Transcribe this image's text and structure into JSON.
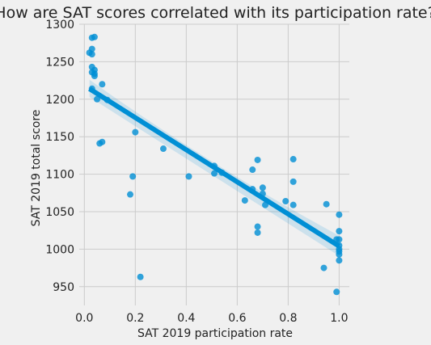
{
  "chart_data": {
    "type": "scatter",
    "title": "How are SAT scores correlated with its participation rate?",
    "xlabel": "SAT 2019 participation rate",
    "ylabel": "SAT 2019 total score",
    "xlim": [
      -0.02,
      1.04
    ],
    "ylim": [
      925,
      1300
    ],
    "xticks": [
      0.0,
      0.2,
      0.4,
      0.6,
      0.8,
      1.0
    ],
    "xtick_labels": [
      "0.0",
      "0.2",
      "0.4",
      "0.6",
      "0.8",
      "1.0"
    ],
    "yticks": [
      950,
      1000,
      1050,
      1100,
      1150,
      1200,
      1250,
      1300
    ],
    "ytick_labels": [
      "950",
      "1000",
      "1050",
      "1100",
      "1150",
      "1200",
      "1250",
      "1300"
    ],
    "grid": true,
    "point_color": "#008fd5",
    "regression": {
      "x": [
        0.02,
        1.0
      ],
      "y": [
        1214,
        1004
      ],
      "ci_lower_start": 1203,
      "ci_upper_start": 1226,
      "ci_lower_mid": 1097,
      "ci_upper_mid": 1108,
      "ci_lower_end": 991,
      "ci_upper_end": 1018
    },
    "points": [
      {
        "x": 0.02,
        "y": 1262
      },
      {
        "x": 0.03,
        "y": 1282
      },
      {
        "x": 0.04,
        "y": 1283
      },
      {
        "x": 0.03,
        "y": 1267
      },
      {
        "x": 0.03,
        "y": 1260
      },
      {
        "x": 0.03,
        "y": 1243
      },
      {
        "x": 0.04,
        "y": 1239
      },
      {
        "x": 0.03,
        "y": 1236
      },
      {
        "x": 0.04,
        "y": 1234
      },
      {
        "x": 0.04,
        "y": 1231
      },
      {
        "x": 0.07,
        "y": 1220
      },
      {
        "x": 0.03,
        "y": 1214
      },
      {
        "x": 0.05,
        "y": 1200
      },
      {
        "x": 0.09,
        "y": 1199
      },
      {
        "x": 0.2,
        "y": 1156
      },
      {
        "x": 0.07,
        "y": 1143
      },
      {
        "x": 0.06,
        "y": 1141
      },
      {
        "x": 0.31,
        "y": 1134
      },
      {
        "x": 0.51,
        "y": 1111
      },
      {
        "x": 0.51,
        "y": 1101
      },
      {
        "x": 0.54,
        "y": 1102
      },
      {
        "x": 0.41,
        "y": 1097
      },
      {
        "x": 0.19,
        "y": 1097
      },
      {
        "x": 0.18,
        "y": 1073
      },
      {
        "x": 0.68,
        "y": 1119
      },
      {
        "x": 0.66,
        "y": 1106
      },
      {
        "x": 0.82,
        "y": 1120
      },
      {
        "x": 0.82,
        "y": 1090
      },
      {
        "x": 0.7,
        "y": 1082
      },
      {
        "x": 0.66,
        "y": 1080
      },
      {
        "x": 0.7,
        "y": 1074
      },
      {
        "x": 0.63,
        "y": 1065
      },
      {
        "x": 0.79,
        "y": 1064
      },
      {
        "x": 0.71,
        "y": 1059
      },
      {
        "x": 0.82,
        "y": 1059
      },
      {
        "x": 0.95,
        "y": 1060
      },
      {
        "x": 1.0,
        "y": 1046
      },
      {
        "x": 0.68,
        "y": 1030
      },
      {
        "x": 0.68,
        "y": 1022
      },
      {
        "x": 1.0,
        "y": 1024
      },
      {
        "x": 0.99,
        "y": 1013
      },
      {
        "x": 1.0,
        "y": 1013
      },
      {
        "x": 1.0,
        "y": 1005
      },
      {
        "x": 1.0,
        "y": 1000
      },
      {
        "x": 1.0,
        "y": 997
      },
      {
        "x": 1.0,
        "y": 993
      },
      {
        "x": 1.0,
        "y": 985
      },
      {
        "x": 0.94,
        "y": 975
      },
      {
        "x": 0.22,
        "y": 963
      },
      {
        "x": 0.99,
        "y": 943
      }
    ]
  }
}
